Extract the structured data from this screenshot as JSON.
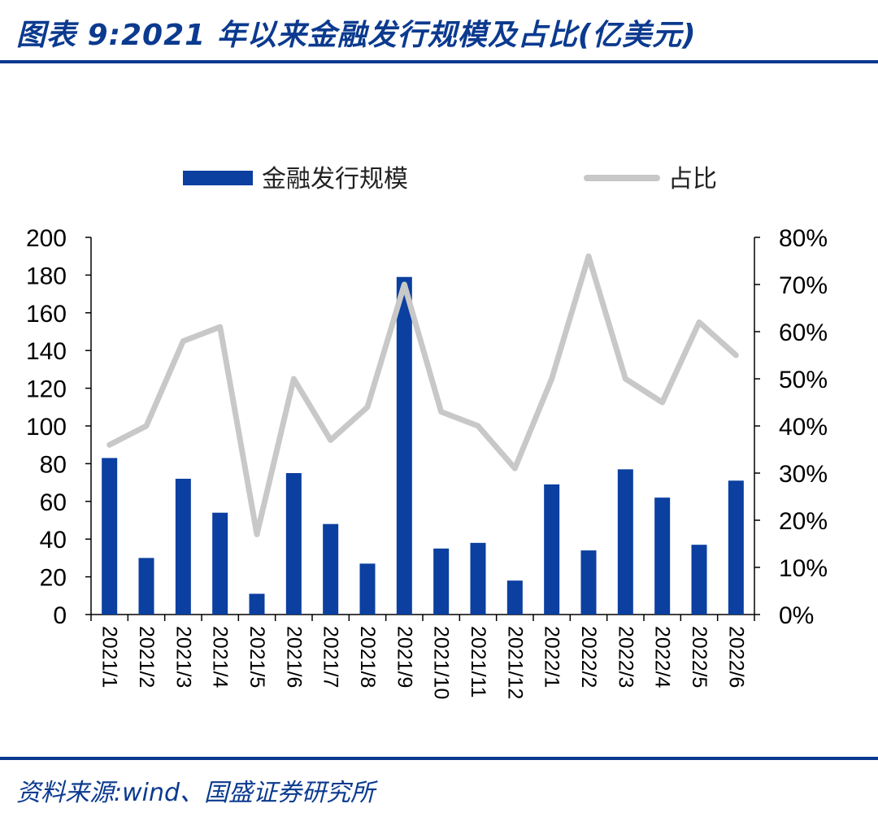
{
  "header": {
    "title": "图表 9:2021 年以来金融发行规模及占比(亿美元)"
  },
  "footer": {
    "source": "资料来源:wind、国盛证券研究所"
  },
  "colors": {
    "bar": "#0b3fa0",
    "line": "#c8c8c8",
    "brand": "#0b3a8f"
  },
  "chart_data": {
    "type": "bar",
    "title": "",
    "categories": [
      "2021/1",
      "2021/2",
      "2021/3",
      "2021/4",
      "2021/5",
      "2021/6",
      "2021/7",
      "2021/8",
      "2021/9",
      "2021/10",
      "2021/11",
      "2021/12",
      "2022/1",
      "2022/2",
      "2022/3",
      "2022/4",
      "2022/5",
      "2022/6"
    ],
    "series": [
      {
        "name": "金融发行规模",
        "type": "bar",
        "axis": "left",
        "values": [
          83,
          30,
          72,
          54,
          11,
          75,
          48,
          27,
          179,
          35,
          38,
          18,
          69,
          34,
          77,
          62,
          37,
          71
        ]
      },
      {
        "name": "占比",
        "type": "line",
        "axis": "right",
        "values": [
          0.36,
          0.4,
          0.58,
          0.61,
          0.17,
          0.5,
          0.37,
          0.44,
          0.7,
          0.43,
          0.4,
          0.31,
          0.5,
          0.76,
          0.5,
          0.45,
          0.62,
          0.55
        ]
      }
    ],
    "yleft": {
      "min": 0,
      "max": 200,
      "ticks": [
        "0",
        "20",
        "40",
        "60",
        "80",
        "100",
        "120",
        "140",
        "160",
        "180",
        "200"
      ]
    },
    "yright": {
      "min": 0,
      "max": 0.8,
      "ticks": [
        "0%",
        "10%",
        "20%",
        "30%",
        "40%",
        "50%",
        "60%",
        "70%",
        "80%"
      ]
    },
    "legend_position": "top",
    "grid": false
  }
}
